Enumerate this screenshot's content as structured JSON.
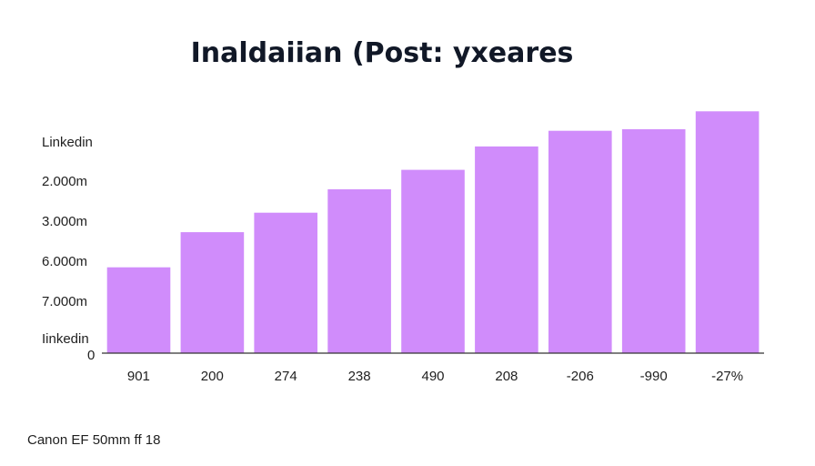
{
  "chart_data": {
    "type": "bar",
    "title": "Inaldaiian (Post: yxeares",
    "categories": [
      "901",
      "200",
      "274",
      "238",
      "490",
      "208",
      "-206",
      "-990",
      "-27%"
    ],
    "values": [
      1.1,
      1.55,
      1.8,
      2.1,
      2.35,
      2.65,
      2.85,
      2.87,
      3.1
    ],
    "ylim": [
      0,
      3.5
    ],
    "ytick_labels": [
      "Linkedin",
      "2.000m",
      "3.000m",
      "6.000m",
      "7.000m",
      "Iinkedin",
      "0"
    ],
    "bar_color": "#d08cfb",
    "xlabel": "",
    "ylabel": "",
    "grid": false,
    "footer": "Canon EF 50mm ff 18"
  }
}
